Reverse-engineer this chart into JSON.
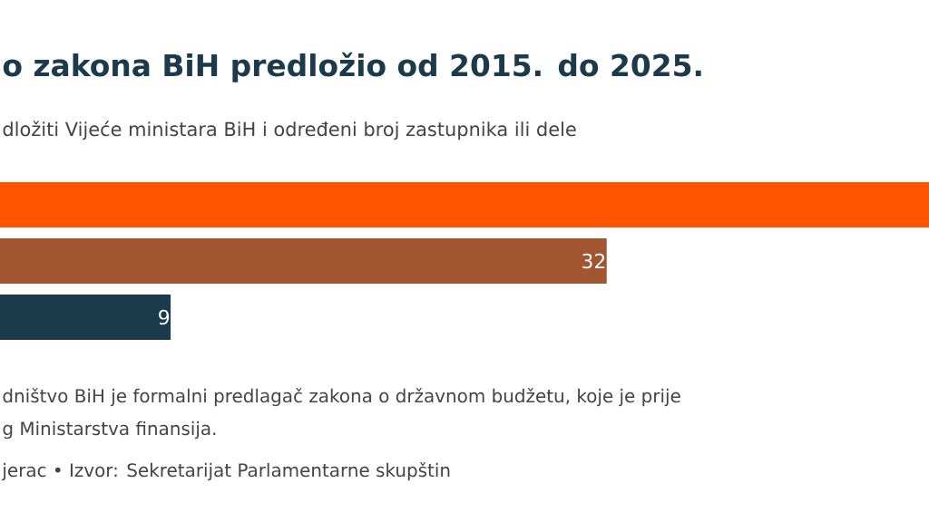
{
  "chart_data": {
    "type": "bar",
    "orientation": "horizontal",
    "title": "o zakona BiH predložio od 2015. do 2025.",
    "subtitle": "dložiti Vijeće ministara BiH i određeni broj zastupnika ili dele",
    "categories": [
      null,
      null,
      null
    ],
    "values": [
      49,
      32,
      9
    ],
    "colors": [
      "#ff5500",
      "#a35430",
      "#1b3a4b"
    ],
    "value_labels": [
      null,
      "32",
      "9"
    ],
    "xlim": [
      0,
      49
    ],
    "annotations": [
      "dništvo BiH je formalni predlagač zakona o državnom budžetu, koje je prije",
      "g Ministarstva finansija.",
      "jerac • Izvor: Sekretarijat Parlamentarne skupštin"
    ]
  }
}
